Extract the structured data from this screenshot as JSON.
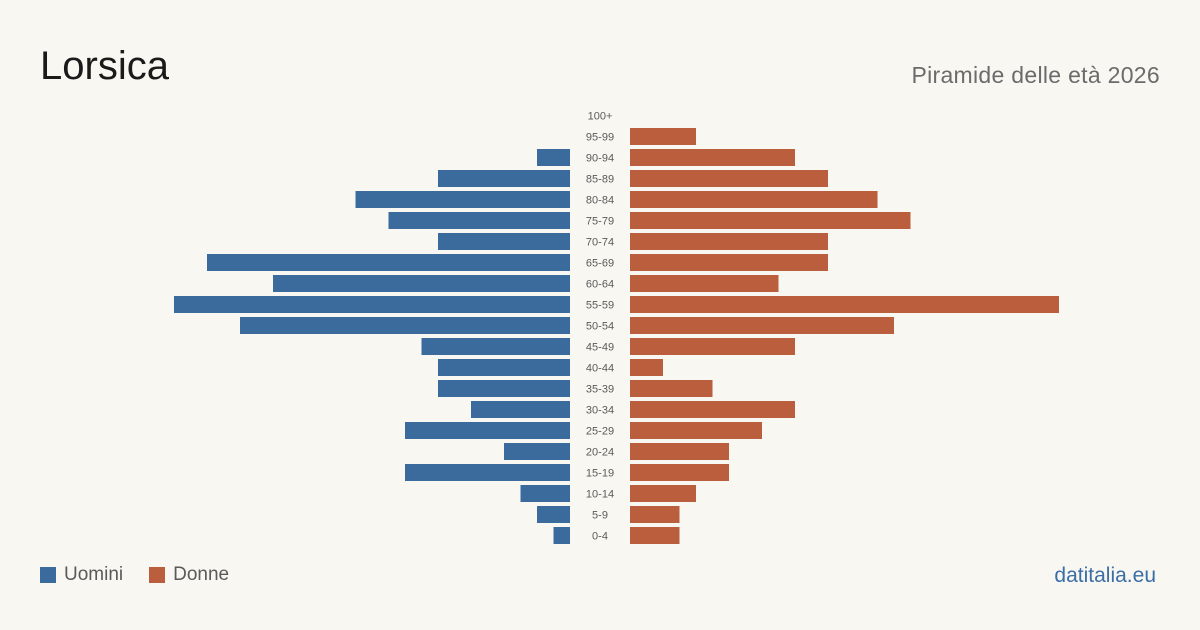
{
  "header": {
    "title": "Lorsica",
    "subtitle": "Piramide delle età 2026"
  },
  "legend": {
    "men_label": "Uomini",
    "women_label": "Donne"
  },
  "brand": "datitalia.eu",
  "colors": {
    "men": "#3a6b9c",
    "women": "#bb5e3d",
    "background": "#f9f7f2"
  },
  "chart_data": {
    "type": "bar",
    "orientation": "horizontal-pyramid",
    "categories": [
      "100+",
      "95-99",
      "90-94",
      "85-89",
      "80-84",
      "75-79",
      "70-74",
      "65-69",
      "60-64",
      "55-59",
      "50-54",
      "45-49",
      "40-44",
      "35-39",
      "30-34",
      "25-29",
      "20-24",
      "15-19",
      "10-14",
      "5-9",
      "0-4"
    ],
    "series": [
      {
        "name": "Uomini",
        "values": [
          0,
          0,
          2,
          8,
          13,
          11,
          8,
          22,
          18,
          24,
          20,
          9,
          8,
          8,
          6,
          10,
          4,
          10,
          3,
          2,
          1
        ]
      },
      {
        "name": "Donne",
        "values": [
          0,
          4,
          10,
          12,
          15,
          17,
          12,
          12,
          9,
          26,
          16,
          10,
          2,
          5,
          10,
          8,
          6,
          6,
          4,
          3,
          3
        ]
      }
    ],
    "grid": false,
    "legend_position": "bottom-left"
  }
}
